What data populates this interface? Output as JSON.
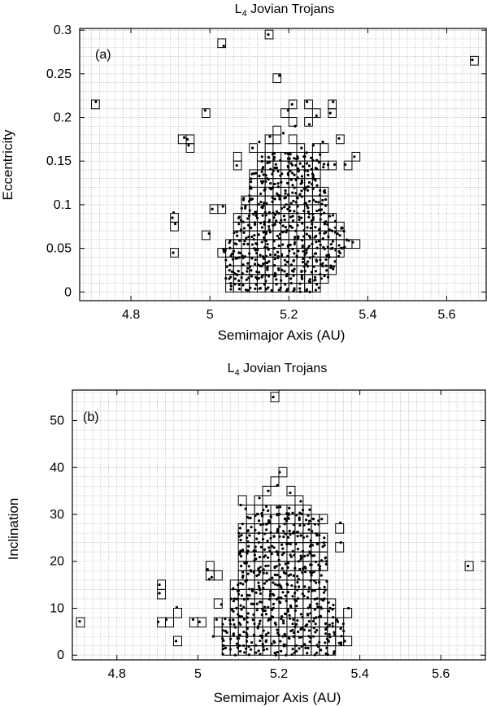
{
  "chart_data": [
    {
      "type": "scatter",
      "panel_label": "(a)",
      "title_main": "L",
      "title_sub": "4",
      "title_rest": " Jovian Trojans",
      "xlabel": "Semimajor Axis (AU)",
      "ylabel": "Eccentricity",
      "xlim": [
        4.67,
        5.7
      ],
      "ylim": [
        -0.01,
        0.302
      ],
      "xticks": [
        4.8,
        5,
        5.2,
        5.4,
        5.6
      ],
      "xtick_labels": [
        "4.8",
        "5",
        "5.2",
        "5.4",
        "5.6"
      ],
      "yticks": [
        0,
        0.05,
        0.1,
        0.15,
        0.2,
        0.25,
        0.3
      ],
      "ytick_labels": [
        "0",
        "0.05",
        "0.1",
        "0.15",
        "0.2",
        "0.25",
        "0.3"
      ],
      "grid": true,
      "bin_size": {
        "x": 0.02,
        "y": 0.01
      },
      "points": [
        [
          4.711,
          0.218
        ],
        [
          5.035,
          0.282
        ],
        [
          5.148,
          0.295
        ],
        [
          5.665,
          0.266
        ],
        [
          4.988,
          0.208
        ],
        [
          5.176,
          0.248
        ],
        [
          5.208,
          0.215
        ],
        [
          5.246,
          0.218
        ],
        [
          5.312,
          0.218
        ],
        [
          5.198,
          0.208
        ],
        [
          4.935,
          0.177
        ],
        [
          4.943,
          0.175
        ],
        [
          4.946,
          0.168
        ],
        [
          5.068,
          0.145
        ],
        [
          4.908,
          0.091
        ],
        [
          4.905,
          0.085
        ],
        [
          4.912,
          0.078
        ],
        [
          4.907,
          0.045
        ],
        [
          5.006,
          0.095
        ],
        [
          4.998,
          0.067
        ],
        [
          5.033,
          0.098
        ],
        [
          5.327,
          0.176
        ],
        [
          5.343,
          0.146
        ],
        [
          5.366,
          0.155
        ],
        [
          5.362,
          0.057
        ],
        [
          5.305,
          0.205
        ],
        [
          5.27,
          0.202
        ],
        [
          5.252,
          0.192
        ],
        [
          5.216,
          0.19
        ],
        [
          5.186,
          0.182
        ],
        [
          5.152,
          0.178
        ],
        [
          5.125,
          0.172
        ],
        [
          5.108,
          0.165
        ],
        [
          5.132,
          0.155
        ],
        [
          5.162,
          0.152
        ],
        [
          5.204,
          0.158
        ],
        [
          5.232,
          0.165
        ],
        [
          5.262,
          0.168
        ],
        [
          5.286,
          0.172
        ],
        [
          5.316,
          0.146
        ]
      ],
      "cells": [
        [
          4.7,
          0.21
        ],
        [
          5.02,
          0.28
        ],
        [
          5.14,
          0.29
        ],
        [
          5.66,
          0.26
        ],
        [
          4.98,
          0.2
        ],
        [
          5.16,
          0.24
        ],
        [
          5.2,
          0.21
        ],
        [
          5.24,
          0.21
        ],
        [
          5.3,
          0.21
        ],
        [
          5.18,
          0.2
        ],
        [
          4.92,
          0.17
        ],
        [
          4.94,
          0.17
        ],
        [
          4.94,
          0.16
        ],
        [
          5.06,
          0.14
        ],
        [
          4.9,
          0.08
        ],
        [
          4.9,
          0.07
        ],
        [
          4.9,
          0.04
        ],
        [
          5.0,
          0.09
        ],
        [
          4.98,
          0.06
        ],
        [
          5.02,
          0.09
        ],
        [
          5.32,
          0.17
        ],
        [
          5.34,
          0.14
        ],
        [
          5.36,
          0.15
        ],
        [
          5.36,
          0.05
        ],
        [
          5.3,
          0.2
        ],
        [
          5.26,
          0.2
        ],
        [
          5.24,
          0.19
        ],
        [
          5.2,
          0.19
        ],
        [
          5.16,
          0.18
        ],
        [
          5.14,
          0.17
        ],
        [
          5.1,
          0.16
        ],
        [
          5.12,
          0.15
        ],
        [
          5.14,
          0.16
        ],
        [
          5.16,
          0.17
        ],
        [
          5.2,
          0.17
        ],
        [
          5.22,
          0.16
        ],
        [
          5.26,
          0.16
        ],
        [
          5.28,
          0.16
        ],
        [
          5.3,
          0.14
        ],
        [
          5.06,
          0.15
        ]
      ],
      "cluster": {
        "rows": [
          {
            "y": 0.0,
            "x_start": 5.04,
            "x_end": 5.26
          },
          {
            "y": 0.01,
            "x_start": 5.04,
            "x_end": 5.28
          },
          {
            "y": 0.02,
            "x_start": 5.04,
            "x_end": 5.3
          },
          {
            "y": 0.03,
            "x_start": 5.04,
            "x_end": 5.3
          },
          {
            "y": 0.04,
            "x_start": 5.02,
            "x_end": 5.32
          },
          {
            "y": 0.05,
            "x_start": 5.04,
            "x_end": 5.34
          },
          {
            "y": 0.06,
            "x_start": 5.06,
            "x_end": 5.32
          },
          {
            "y": 0.07,
            "x_start": 5.06,
            "x_end": 5.32
          },
          {
            "y": 0.08,
            "x_start": 5.06,
            "x_end": 5.3
          },
          {
            "y": 0.09,
            "x_start": 5.08,
            "x_end": 5.28
          },
          {
            "y": 0.1,
            "x_start": 5.08,
            "x_end": 5.28
          },
          {
            "y": 0.11,
            "x_start": 5.1,
            "x_end": 5.28
          },
          {
            "y": 0.12,
            "x_start": 5.1,
            "x_end": 5.26
          },
          {
            "y": 0.13,
            "x_start": 5.1,
            "x_end": 5.26
          },
          {
            "y": 0.14,
            "x_start": 5.12,
            "x_end": 5.28
          },
          {
            "y": 0.15,
            "x_start": 5.14,
            "x_end": 5.26
          }
        ],
        "per_cell": 3
      }
    },
    {
      "type": "scatter",
      "panel_label": "(b)",
      "title_main": "L",
      "title_sub": "4",
      "title_rest": " Jovian Trojans",
      "xlabel": "Semimajor Axis (AU)",
      "ylabel": "Inclination",
      "xlim": [
        4.69,
        5.71
      ],
      "ylim": [
        -1,
        56.5
      ],
      "xticks": [
        4.8,
        5,
        5.2,
        5.4,
        5.6
      ],
      "xtick_labels": [
        "4.8",
        "5",
        "5.2",
        "5.4",
        "5.6"
      ],
      "yticks": [
        0,
        10,
        20,
        30,
        40,
        50
      ],
      "ytick_labels": [
        "0",
        "10",
        "20",
        "30",
        "40",
        "50"
      ],
      "grid": true,
      "bin_size": {
        "x": 0.02,
        "y": 2
      },
      "points": [
        [
          4.708,
          7.2
        ],
        [
          4.905,
          15.0
        ],
        [
          4.905,
          13.2
        ],
        [
          4.902,
          7.1
        ],
        [
          4.922,
          7.6
        ],
        [
          4.948,
          10.2
        ],
        [
          4.946,
          3.0
        ],
        [
          4.988,
          7.6
        ],
        [
          5.004,
          7.1
        ],
        [
          5.024,
          18.3
        ],
        [
          5.028,
          16.2
        ],
        [
          5.034,
          16.6
        ],
        [
          5.058,
          10.8
        ],
        [
          5.046,
          7.6
        ],
        [
          5.038,
          4.0
        ],
        [
          5.186,
          55.0
        ],
        [
          5.202,
          39.0
        ],
        [
          5.196,
          36.2
        ],
        [
          5.106,
          32.0
        ],
        [
          5.118,
          31.2
        ],
        [
          5.352,
          28.2
        ],
        [
          5.353,
          24.0
        ],
        [
          5.372,
          10.0
        ],
        [
          5.363,
          3.0
        ],
        [
          5.667,
          19.0
        ],
        [
          5.174,
          35.0
        ],
        [
          5.152,
          33.5
        ],
        [
          5.228,
          34.6
        ],
        [
          5.254,
          32.8
        ],
        [
          5.276,
          31.0
        ],
        [
          5.306,
          29.0
        ],
        [
          5.312,
          25.0
        ],
        [
          5.318,
          20.0
        ],
        [
          5.305,
          17.0
        ]
      ],
      "cells": [
        [
          4.7,
          6
        ],
        [
          4.9,
          14
        ],
        [
          4.9,
          12
        ],
        [
          4.9,
          6
        ],
        [
          4.92,
          6
        ],
        [
          4.94,
          8
        ],
        [
          4.94,
          2
        ],
        [
          4.98,
          6
        ],
        [
          5.0,
          6
        ],
        [
          5.02,
          18
        ],
        [
          5.02,
          16
        ],
        [
          5.04,
          16
        ],
        [
          5.04,
          10
        ],
        [
          5.04,
          6
        ],
        [
          5.04,
          4
        ],
        [
          5.18,
          54
        ],
        [
          5.2,
          38
        ],
        [
          5.18,
          36
        ],
        [
          5.1,
          32
        ],
        [
          5.12,
          30
        ],
        [
          5.34,
          26
        ],
        [
          5.34,
          22
        ],
        [
          5.36,
          8
        ],
        [
          5.36,
          2
        ],
        [
          5.66,
          18
        ],
        [
          5.16,
          34
        ],
        [
          5.14,
          32
        ],
        [
          5.22,
          34
        ],
        [
          5.24,
          32
        ],
        [
          5.26,
          30
        ],
        [
          5.3,
          28
        ],
        [
          5.3,
          24
        ],
        [
          5.3,
          18
        ],
        [
          5.28,
          16
        ]
      ],
      "cluster": {
        "rows": [
          {
            "y": 0,
            "x_start": 5.06,
            "x_end": 5.32
          },
          {
            "y": 2,
            "x_start": 5.06,
            "x_end": 5.34
          },
          {
            "y": 4,
            "x_start": 5.06,
            "x_end": 5.34
          },
          {
            "y": 6,
            "x_start": 5.06,
            "x_end": 5.34
          },
          {
            "y": 8,
            "x_start": 5.08,
            "x_end": 5.32
          },
          {
            "y": 10,
            "x_start": 5.08,
            "x_end": 5.32
          },
          {
            "y": 12,
            "x_start": 5.08,
            "x_end": 5.3
          },
          {
            "y": 14,
            "x_start": 5.08,
            "x_end": 5.3
          },
          {
            "y": 16,
            "x_start": 5.1,
            "x_end": 5.28
          },
          {
            "y": 18,
            "x_start": 5.1,
            "x_end": 5.3
          },
          {
            "y": 20,
            "x_start": 5.1,
            "x_end": 5.3
          },
          {
            "y": 22,
            "x_start": 5.1,
            "x_end": 5.3
          },
          {
            "y": 24,
            "x_start": 5.1,
            "x_end": 5.28
          },
          {
            "y": 26,
            "x_start": 5.1,
            "x_end": 5.28
          },
          {
            "y": 28,
            "x_start": 5.12,
            "x_end": 5.28
          },
          {
            "y": 30,
            "x_start": 5.14,
            "x_end": 5.24
          }
        ],
        "per_cell": 3
      }
    }
  ]
}
